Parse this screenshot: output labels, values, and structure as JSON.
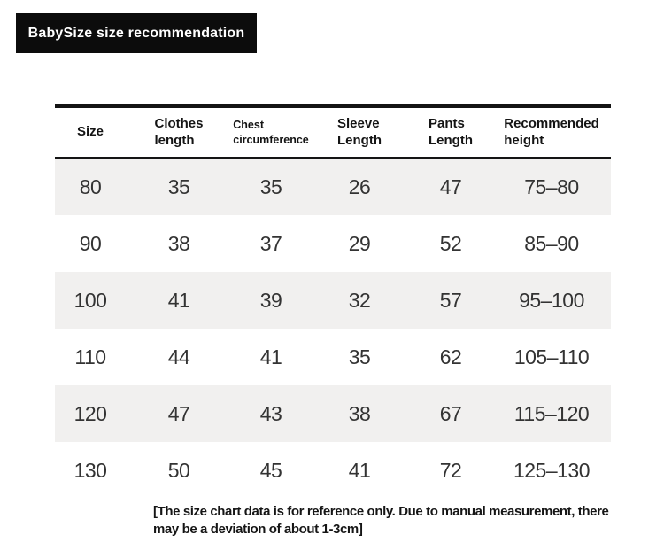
{
  "badge": {
    "label": "BabySize size recommendation"
  },
  "colors": {
    "badge_bg": "#0c0c0c",
    "badge_text": "#ffffff",
    "table_border": "#141414",
    "row_alt_bg": "#f1f0ef",
    "header_text": "#141414",
    "data_text": "#333333",
    "page_bg": "#ffffff"
  },
  "table": {
    "columns": [
      {
        "lines": [
          "Size",
          ""
        ]
      },
      {
        "lines": [
          "Clothes",
          "length"
        ]
      },
      {
        "lines": [
          "Chest",
          "circumference"
        ]
      },
      {
        "lines": [
          "Sleeve",
          "Length"
        ]
      },
      {
        "lines": [
          "Pants",
          "Length"
        ]
      },
      {
        "lines": [
          "Recommended",
          "height"
        ]
      }
    ],
    "rows": [
      {
        "cells": [
          "80",
          "35",
          "35",
          "26",
          "47",
          "75–80"
        ]
      },
      {
        "cells": [
          "90",
          "38",
          "37",
          "29",
          "52",
          "85–90"
        ]
      },
      {
        "cells": [
          "100",
          "41",
          "39",
          "32",
          "57",
          "95–100"
        ]
      },
      {
        "cells": [
          "110",
          "44",
          "41",
          "35",
          "62",
          "105–110"
        ]
      },
      {
        "cells": [
          "120",
          "47",
          "43",
          "38",
          "67",
          "115–120"
        ]
      },
      {
        "cells": [
          "130",
          "50",
          "45",
          "41",
          "72",
          "125–130"
        ]
      }
    ]
  },
  "footer": {
    "lines": [
      "[The size chart data is for reference only. Due to manual measurement, there",
      "may be a deviation of about 1-3cm]"
    ]
  }
}
